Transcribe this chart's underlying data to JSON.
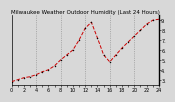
{
  "title": "Milwaukee Weather Outdoor Humidity (Last 24 Hours)",
  "y_values": [
    28,
    30,
    32,
    33,
    35,
    38,
    40,
    44,
    50,
    55,
    60,
    70,
    82,
    88,
    72,
    55,
    48,
    55,
    62,
    68,
    74,
    80,
    86,
    90,
    91
  ],
  "x_values": [
    0,
    1,
    2,
    3,
    4,
    5,
    6,
    7,
    8,
    9,
    10,
    11,
    12,
    13,
    14,
    15,
    16,
    17,
    18,
    19,
    20,
    21,
    22,
    23,
    24
  ],
  "line_color": "#cc0000",
  "marker_color": "#000000",
  "grid_color": "#888888",
  "background_color": "#d8d8d8",
  "plot_bg_color": "#d8d8d8",
  "ylim": [
    25,
    95
  ],
  "xlim": [
    0,
    24
  ],
  "y_ticks": [
    30,
    40,
    50,
    60,
    70,
    80,
    90
  ],
  "y_tick_labels": [
    "3.",
    "4.",
    "5.",
    "6.",
    "7.",
    "8.",
    "9."
  ],
  "x_grid_positions": [
    4,
    8,
    12,
    16,
    20,
    24
  ],
  "tick_fontsize": 3.5,
  "title_fontsize": 4.0,
  "linewidth": 0.7,
  "markersize": 1.5
}
